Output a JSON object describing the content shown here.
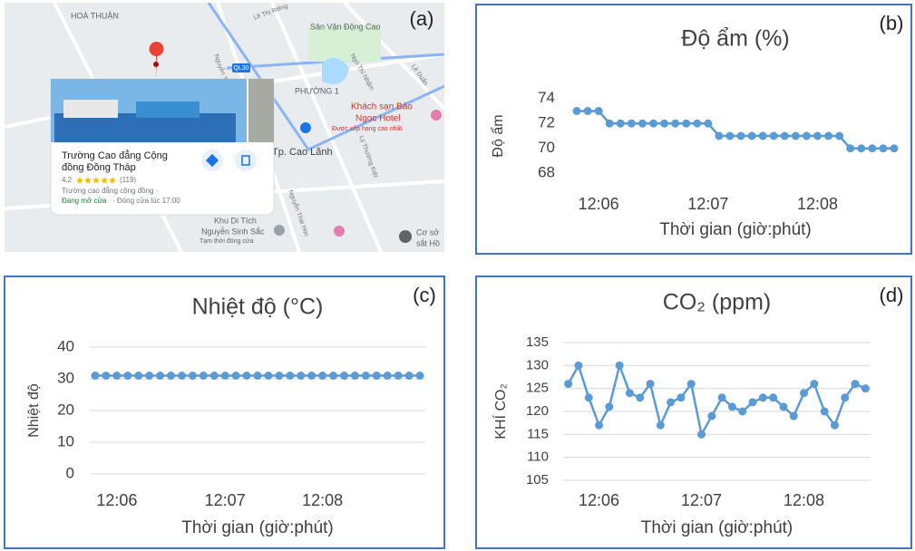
{
  "map": {
    "panel_label": "(a)",
    "labels": [
      "HOÀ THUẬN",
      "Sân Vận Động Cao",
      "QL30",
      "PHƯỜNG 1",
      "Khách sạn Bảo",
      "Ngọc Hotel",
      "Được xếp hạng cao nhất",
      "Tp. Cao Lãnh",
      "Khu Di Tích",
      "Nguyễn Sinh Sắc",
      "Tạm thời đóng cửa",
      "Cơ sở",
      "sắt Hồ",
      "Lê Thị Riêng",
      "Nguyễn Tr",
      "Ngô Thì Nhậm",
      "Lê Duẩn",
      "Lý Thường Kiệt",
      "Nguyễn Thái Học"
    ],
    "card": {
      "name_line1": "Trường Cao đẳng Cộng",
      "name_line2": "đồng Đồng Tháp",
      "rating": "4,2",
      "review_count": "(119)",
      "category": "Trường cao đẳng cộng đồng ·",
      "status": "Đang mở cửa",
      "hours": "· Đóng cửa lúc 17:00"
    }
  },
  "chart_data": [
    {
      "type": "line",
      "annotation": "(b)",
      "title": "Độ ẩm (%)",
      "x_label": "Thời gian (giờ:phút)",
      "y_label": "Độ ẩm",
      "categories": [
        null,
        null,
        "12:06",
        null,
        null,
        null,
        null,
        null,
        null,
        null,
        null,
        null,
        "12:07",
        null,
        null,
        null,
        null,
        null,
        null,
        null,
        null,
        null,
        "12:08",
        null,
        null,
        null,
        null,
        null,
        null,
        null
      ],
      "values": [
        73,
        73,
        73,
        72,
        72,
        72,
        72,
        72,
        72,
        72,
        72,
        72,
        72,
        71,
        71,
        71,
        71,
        71,
        71,
        71,
        71,
        71,
        71,
        71,
        71,
        70,
        70,
        70,
        70,
        70
      ],
      "color": "#5b9bd5",
      "ylim": [
        67,
        75
      ],
      "yticks": [
        68,
        70,
        72,
        74
      ],
      "grid": false
    },
    {
      "type": "line",
      "annotation": "(c)",
      "title": "Nhiệt độ (°C)",
      "x_label": "Thời gian (giờ:phút)",
      "y_label": "Nhiệt độ",
      "categories": [
        null,
        null,
        "12:06",
        null,
        null,
        null,
        null,
        null,
        null,
        null,
        null,
        null,
        "12:07",
        null,
        null,
        null,
        null,
        null,
        null,
        null,
        null,
        "12:08",
        null,
        null,
        null,
        null,
        null,
        null,
        null,
        null,
        null
      ],
      "values": [
        31,
        31,
        31,
        31,
        31,
        31,
        31,
        31,
        31,
        31,
        31,
        31,
        31,
        31,
        31,
        31,
        31,
        31,
        31,
        31,
        31,
        31,
        31,
        31,
        31,
        31,
        31,
        31,
        31,
        31,
        31
      ],
      "color": "#5b9bd5",
      "ylim": [
        0,
        40
      ],
      "yticks": [
        0,
        10,
        20,
        30,
        40
      ],
      "grid": true
    },
    {
      "type": "line",
      "annotation": "(d)",
      "title": "CO₂ (ppm)",
      "x_label": "Thời gian (giờ:phút)",
      "y_label": "KHÍ CO₂",
      "categories": [
        null,
        null,
        null,
        "12:06",
        null,
        null,
        null,
        null,
        null,
        null,
        null,
        null,
        null,
        "12:07",
        null,
        null,
        null,
        null,
        null,
        null,
        null,
        null,
        null,
        "12:08",
        null,
        null,
        null,
        null,
        null,
        null
      ],
      "values": [
        126,
        130,
        123,
        117,
        121,
        130,
        124,
        123,
        126,
        117,
        122,
        123,
        126,
        115,
        119,
        123,
        121,
        120,
        122,
        123,
        123,
        121,
        119,
        124,
        126,
        120,
        117,
        123,
        126,
        125
      ],
      "color": "#5b9bd5",
      "ylim": [
        105,
        135
      ],
      "yticks": [
        105,
        110,
        115,
        120,
        125,
        130,
        135
      ],
      "grid": true
    }
  ]
}
